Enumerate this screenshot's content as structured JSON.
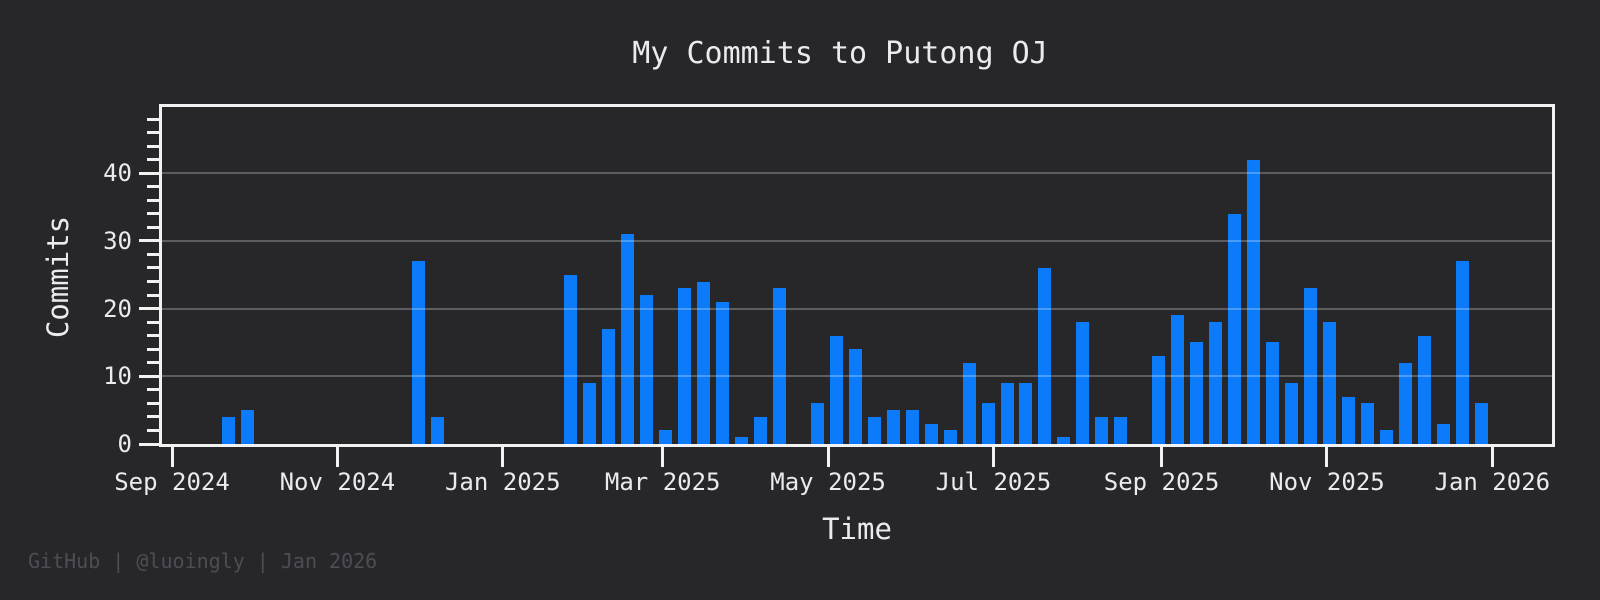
{
  "title": "My Commits to Putong OJ",
  "footer": {
    "text": "GitHub | @luoingly | Jan 2026"
  },
  "colors": {
    "background": "#27272a",
    "bar": "#0c7bfa",
    "text": "#ebebed",
    "axis": "#f2f2f2",
    "grid": "rgba(255,255,255,0.25)",
    "footer_text": "#4d4d55"
  },
  "chart_data": {
    "type": "bar",
    "title": "My Commits to Putong OJ",
    "xlabel": "Time",
    "ylabel": "Commits",
    "legend": null,
    "grid": "horizontal-major",
    "ylim": [
      0,
      50
    ],
    "y_ticks": [
      0,
      10,
      20,
      30,
      40
    ],
    "y_minor_tick_step": 2,
    "xlim": [
      "2024-08-28",
      "2026-01-23"
    ],
    "x_ticks": [
      {
        "label": "Sep 2024",
        "date": "2024-09-01"
      },
      {
        "label": "Nov 2024",
        "date": "2024-11-01"
      },
      {
        "label": "Jan 2025",
        "date": "2025-01-01"
      },
      {
        "label": "Mar 2025",
        "date": "2025-03-01"
      },
      {
        "label": "May 2025",
        "date": "2025-05-01"
      },
      {
        "label": "Jul 2025",
        "date": "2025-07-01"
      },
      {
        "label": "Sep 2025",
        "date": "2025-09-01"
      },
      {
        "label": "Nov 2025",
        "date": "2025-11-01"
      },
      {
        "label": "Jan 2026",
        "date": "2026-01-01"
      }
    ],
    "weeks": [
      {
        "week": "2024-09-22",
        "commits": 4
      },
      {
        "week": "2024-09-29",
        "commits": 5
      },
      {
        "week": "2024-12-01",
        "commits": 27
      },
      {
        "week": "2024-12-08",
        "commits": 4
      },
      {
        "week": "2025-01-26",
        "commits": 25
      },
      {
        "week": "2025-02-02",
        "commits": 9
      },
      {
        "week": "2025-02-09",
        "commits": 17
      },
      {
        "week": "2025-02-16",
        "commits": 31
      },
      {
        "week": "2025-02-23",
        "commits": 22
      },
      {
        "week": "2025-03-02",
        "commits": 2
      },
      {
        "week": "2025-03-09",
        "commits": 23
      },
      {
        "week": "2025-03-16",
        "commits": 24
      },
      {
        "week": "2025-03-23",
        "commits": 21
      },
      {
        "week": "2025-03-30",
        "commits": 1
      },
      {
        "week": "2025-04-06",
        "commits": 4
      },
      {
        "week": "2025-04-13",
        "commits": 23
      },
      {
        "week": "2025-04-27",
        "commits": 6
      },
      {
        "week": "2025-05-04",
        "commits": 16
      },
      {
        "week": "2025-05-11",
        "commits": 14
      },
      {
        "week": "2025-05-18",
        "commits": 4
      },
      {
        "week": "2025-05-25",
        "commits": 5
      },
      {
        "week": "2025-06-01",
        "commits": 5
      },
      {
        "week": "2025-06-08",
        "commits": 3
      },
      {
        "week": "2025-06-15",
        "commits": 2
      },
      {
        "week": "2025-06-22",
        "commits": 12
      },
      {
        "week": "2025-06-29",
        "commits": 6
      },
      {
        "week": "2025-07-06",
        "commits": 9
      },
      {
        "week": "2025-07-13",
        "commits": 9
      },
      {
        "week": "2025-07-20",
        "commits": 26
      },
      {
        "week": "2025-07-27",
        "commits": 1
      },
      {
        "week": "2025-08-03",
        "commits": 18
      },
      {
        "week": "2025-08-10",
        "commits": 4
      },
      {
        "week": "2025-08-17",
        "commits": 4
      },
      {
        "week": "2025-08-31",
        "commits": 13
      },
      {
        "week": "2025-09-07",
        "commits": 19
      },
      {
        "week": "2025-09-14",
        "commits": 15
      },
      {
        "week": "2025-09-21",
        "commits": 18
      },
      {
        "week": "2025-09-28",
        "commits": 34
      },
      {
        "week": "2025-10-05",
        "commits": 42
      },
      {
        "week": "2025-10-12",
        "commits": 15
      },
      {
        "week": "2025-10-19",
        "commits": 9
      },
      {
        "week": "2025-10-26",
        "commits": 23
      },
      {
        "week": "2025-11-02",
        "commits": 18
      },
      {
        "week": "2025-11-09",
        "commits": 7
      },
      {
        "week": "2025-11-16",
        "commits": 6
      },
      {
        "week": "2025-11-23",
        "commits": 2
      },
      {
        "week": "2025-11-30",
        "commits": 12
      },
      {
        "week": "2025-12-07",
        "commits": 16
      },
      {
        "week": "2025-12-14",
        "commits": 3
      },
      {
        "week": "2025-12-21",
        "commits": 27
      },
      {
        "week": "2025-12-28",
        "commits": 6
      }
    ]
  }
}
